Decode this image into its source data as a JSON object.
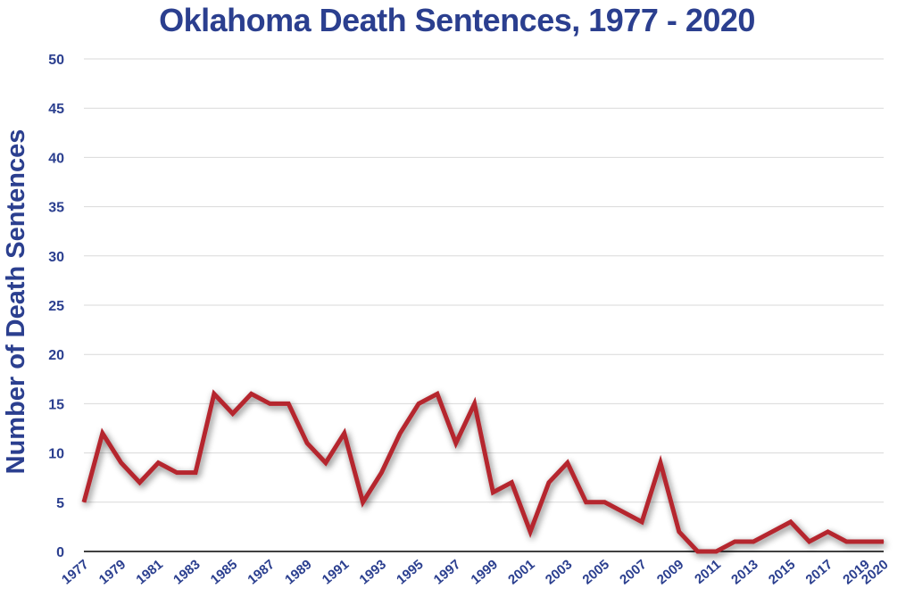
{
  "chart_data": {
    "type": "line",
    "title": "Oklahoma Death Sentences, 1977 - 2020",
    "xlabel": "",
    "ylabel": "Number of Death Sentences",
    "ylim": [
      0,
      50
    ],
    "yticks": [
      0,
      5,
      10,
      15,
      20,
      25,
      30,
      35,
      40,
      45,
      50
    ],
    "xtick_labels": [
      "1977",
      "1979",
      "1981",
      "1983",
      "1985",
      "1987",
      "1989",
      "1991",
      "1993",
      "1995",
      "1997",
      "1999",
      "2001",
      "2003",
      "2005",
      "2007",
      "2009",
      "2011",
      "2013",
      "2015",
      "2017",
      "2019",
      "2020"
    ],
    "grid": true,
    "colors": {
      "line": "#b5252e",
      "text": "#2b3f8f",
      "grid": "#d9d9d9",
      "axis": "#000000"
    },
    "x": [
      1977,
      1978,
      1979,
      1980,
      1981,
      1982,
      1983,
      1984,
      1985,
      1986,
      1987,
      1988,
      1989,
      1990,
      1991,
      1992,
      1993,
      1994,
      1995,
      1996,
      1997,
      1998,
      1999,
      2000,
      2001,
      2002,
      2003,
      2004,
      2005,
      2006,
      2007,
      2008,
      2009,
      2010,
      2011,
      2012,
      2013,
      2014,
      2015,
      2016,
      2017,
      2018,
      2019,
      2020
    ],
    "values": [
      5,
      12,
      9,
      7,
      9,
      8,
      8,
      16,
      14,
      16,
      15,
      15,
      11,
      9,
      12,
      5,
      8,
      12,
      15,
      16,
      11,
      15,
      6,
      7,
      2,
      7,
      9,
      5,
      5,
      4,
      3,
      9,
      2,
      0,
      0,
      1,
      1,
      2,
      3,
      1,
      2,
      1,
      1,
      1
    ]
  }
}
